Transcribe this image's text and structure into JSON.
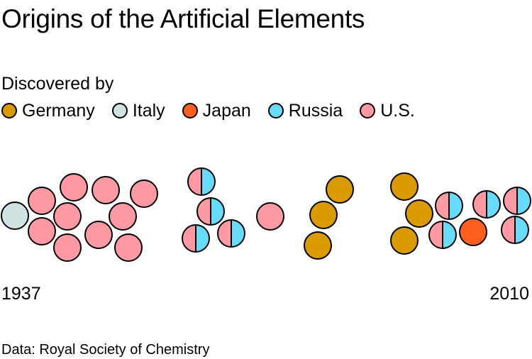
{
  "chart_data": {
    "type": "scatter",
    "title": "Origins of the Artificial Elements",
    "legend_title": "Discovered by",
    "legend_position": "top",
    "grid": false,
    "x_start_label": "1937",
    "x_end_label": "2010",
    "source": "Data: Royal Society of Chemistry",
    "categories": [
      {
        "name": "Germany",
        "color": "#d99b00"
      },
      {
        "name": "Italy",
        "color": "#cfe3e3"
      },
      {
        "name": "Japan",
        "color": "#ff5f1e"
      },
      {
        "name": "Russia",
        "color": "#66dcfa"
      },
      {
        "name": "U.S.",
        "color": "#ff9aa4"
      }
    ],
    "groups": [
      {
        "elements": [
          [
            "Italy"
          ]
        ]
      },
      {
        "elements": [
          [
            "U.S."
          ],
          [
            "U.S."
          ],
          [
            "U.S."
          ],
          [
            "U.S."
          ],
          [
            "U.S."
          ],
          [
            "U.S."
          ],
          [
            "U.S."
          ],
          [
            "U.S."
          ],
          [
            "U.S."
          ],
          [
            "U.S."
          ]
        ]
      },
      {
        "elements": [
          [
            "U.S.",
            "Russia"
          ],
          [
            "U.S.",
            "Russia"
          ],
          [
            "U.S.",
            "Russia"
          ],
          [
            "U.S.",
            "Russia"
          ]
        ]
      },
      {
        "elements": [
          [
            "U.S."
          ]
        ]
      },
      {
        "elements": [
          [
            "Germany"
          ],
          [
            "Germany"
          ],
          [
            "Germany"
          ]
        ]
      },
      {
        "elements": [
          [
            "Germany"
          ],
          [
            "Germany"
          ],
          [
            "Germany"
          ],
          [
            "U.S.",
            "Russia"
          ],
          [
            "U.S.",
            "Russia"
          ],
          [
            "Japan"
          ],
          [
            "U.S.",
            "Russia"
          ],
          [
            "U.S.",
            "Russia"
          ],
          [
            "U.S.",
            "Russia"
          ]
        ]
      }
    ]
  }
}
